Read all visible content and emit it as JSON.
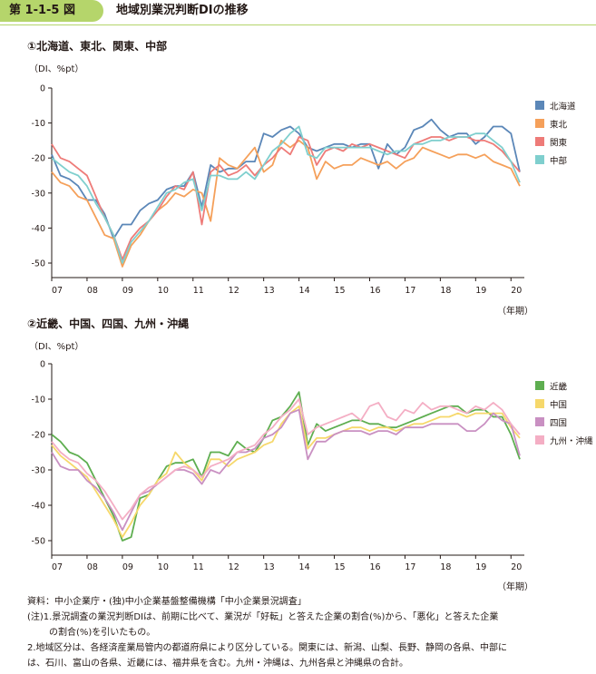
{
  "figure": {
    "label": "第 1-1-5 図",
    "title": "地域別業況判断DIの推移"
  },
  "colors": {
    "北海道": "#5b87b8",
    "東北": "#f5a05a",
    "関東": "#ee7b78",
    "中部": "#7fcfce",
    "近畿": "#5eae50",
    "中国": "#f6d86b",
    "四国": "#c990c2",
    "九州・沖縄": "#f4aec4"
  },
  "panels": [
    {
      "title": "①北海道、東北、関東、中部",
      "units": "（DI、%pt）",
      "year_unit": "（年期）"
    },
    {
      "title": "②近畿、中国、四国、九州・沖縄",
      "units": "（DI、%pt）",
      "year_unit": "（年期）"
    }
  ],
  "chart_data": [
    {
      "type": "line",
      "title": "①北海道、東北、関東、中部",
      "ylabel": "（DI、%pt）",
      "xlabel": "（年期）",
      "ylim": [
        -50,
        0
      ],
      "yticks": [
        0,
        -10,
        -20,
        -30,
        -40,
        -50
      ],
      "xlim": [
        2007.0,
        2020.25
      ],
      "xtick_labels": [
        "07",
        "08",
        "09",
        "10",
        "11",
        "12",
        "13",
        "14",
        "15",
        "16",
        "17",
        "18",
        "19",
        "20"
      ],
      "legend": "right",
      "grid": false,
      "series": [
        {
          "name": "北海道",
          "x": [
            2007.0,
            2007.25,
            2007.5,
            2007.75,
            2008.0,
            2008.25,
            2008.5,
            2008.75,
            2009.0,
            2009.25,
            2009.5,
            2009.75,
            2010.0,
            2010.25,
            2010.5,
            2010.75,
            2011.0,
            2011.25,
            2011.5,
            2011.75,
            2012.0,
            2012.25,
            2012.5,
            2012.75,
            2013.0,
            2013.25,
            2013.5,
            2013.75,
            2014.0,
            2014.25,
            2014.5,
            2014.75,
            2015.0,
            2015.25,
            2015.5,
            2015.75,
            2016.0,
            2016.25,
            2016.5,
            2016.75,
            2017.0,
            2017.25,
            2017.5,
            2017.75,
            2018.0,
            2018.25,
            2018.5,
            2018.75,
            2019.0,
            2019.25,
            2019.5,
            2019.75,
            2020.0,
            2020.25
          ],
          "y": [
            -19,
            -25,
            -26,
            -28,
            -32,
            -32,
            -36,
            -43,
            -39,
            -39,
            -35,
            -33,
            -32,
            -29,
            -28,
            -28,
            -24,
            -34,
            -22,
            -24,
            -23,
            -23,
            -21,
            -21,
            -13,
            -14,
            -12,
            -11,
            -13,
            -17,
            -18,
            -17,
            -16,
            -16,
            -17,
            -16,
            -16,
            -23,
            -16,
            -19,
            -17,
            -12,
            -11,
            -9,
            -12,
            -14,
            -13,
            -13,
            -16,
            -14,
            -11,
            -11,
            -13,
            -24
          ]
        },
        {
          "name": "東北",
          "x": [
            2007.0,
            2007.25,
            2007.5,
            2007.75,
            2008.0,
            2008.25,
            2008.5,
            2008.75,
            2009.0,
            2009.25,
            2009.5,
            2009.75,
            2010.0,
            2010.25,
            2010.5,
            2010.75,
            2011.0,
            2011.25,
            2011.5,
            2011.75,
            2012.0,
            2012.25,
            2012.5,
            2012.75,
            2013.0,
            2013.25,
            2013.5,
            2013.75,
            2014.0,
            2014.25,
            2014.5,
            2014.75,
            2015.0,
            2015.25,
            2015.5,
            2015.75,
            2016.0,
            2016.25,
            2016.5,
            2016.75,
            2017.0,
            2017.25,
            2017.5,
            2017.75,
            2018.0,
            2018.25,
            2018.5,
            2018.75,
            2019.0,
            2019.25,
            2019.5,
            2019.75,
            2020.0,
            2020.25
          ],
          "y": [
            -24,
            -27,
            -28,
            -31,
            -32,
            -37,
            -42,
            -43,
            -51,
            -45,
            -42,
            -38,
            -35,
            -33,
            -30,
            -31,
            -29,
            -30,
            -38,
            -20,
            -22,
            -23,
            -20,
            -17,
            -24,
            -22,
            -15,
            -17,
            -15,
            -17,
            -26,
            -21,
            -23,
            -22,
            -22,
            -20,
            -21,
            -22,
            -21,
            -23,
            -21,
            -20,
            -17,
            -18,
            -19,
            -20,
            -19,
            -19,
            -20,
            -19,
            -21,
            -22,
            -23,
            -28
          ]
        },
        {
          "name": "関東",
          "x": [
            2007.0,
            2007.25,
            2007.5,
            2007.75,
            2008.0,
            2008.25,
            2008.5,
            2008.75,
            2009.0,
            2009.25,
            2009.5,
            2009.75,
            2010.0,
            2010.25,
            2010.5,
            2010.75,
            2011.0,
            2011.25,
            2011.5,
            2011.75,
            2012.0,
            2012.25,
            2012.5,
            2012.75,
            2013.0,
            2013.25,
            2013.5,
            2013.75,
            2014.0,
            2014.25,
            2014.5,
            2014.75,
            2015.0,
            2015.25,
            2015.5,
            2015.75,
            2016.0,
            2016.25,
            2016.5,
            2016.75,
            2017.0,
            2017.25,
            2017.5,
            2017.75,
            2018.0,
            2018.25,
            2018.5,
            2018.75,
            2019.0,
            2019.25,
            2019.5,
            2019.75,
            2020.0,
            2020.25
          ],
          "y": [
            -16,
            -20,
            -21,
            -23,
            -25,
            -31,
            -37,
            -42,
            -49,
            -43,
            -40,
            -38,
            -35,
            -31,
            -28,
            -29,
            -24,
            -39,
            -24,
            -22,
            -25,
            -24,
            -22,
            -25,
            -22,
            -20,
            -17,
            -19,
            -14,
            -15,
            -22,
            -18,
            -17,
            -18,
            -16,
            -17,
            -16,
            -17,
            -18,
            -19,
            -20,
            -16,
            -15,
            -14,
            -14,
            -15,
            -14,
            -14,
            -15,
            -15,
            -16,
            -18,
            -21,
            -24
          ]
        },
        {
          "name": "中部",
          "x": [
            2007.0,
            2007.25,
            2007.5,
            2007.75,
            2008.0,
            2008.25,
            2008.5,
            2008.75,
            2009.0,
            2009.25,
            2009.5,
            2009.75,
            2010.0,
            2010.25,
            2010.5,
            2010.75,
            2011.0,
            2011.25,
            2011.5,
            2011.75,
            2012.0,
            2012.25,
            2012.5,
            2012.75,
            2013.0,
            2013.25,
            2013.5,
            2013.75,
            2014.0,
            2014.25,
            2014.5,
            2014.75,
            2015.0,
            2015.25,
            2015.5,
            2015.75,
            2016.0,
            2016.25,
            2016.5,
            2016.75,
            2017.0,
            2017.25,
            2017.5,
            2017.75,
            2018.0,
            2018.25,
            2018.5,
            2018.75,
            2019.0,
            2019.25,
            2019.5,
            2019.75,
            2020.0,
            2020.25
          ],
          "y": [
            -20,
            -22,
            -24,
            -25,
            -28,
            -33,
            -37,
            -42,
            -50,
            -44,
            -41,
            -38,
            -34,
            -30,
            -29,
            -27,
            -26,
            -35,
            -25,
            -25,
            -26,
            -26,
            -24,
            -26,
            -22,
            -18,
            -16,
            -13,
            -11,
            -19,
            -20,
            -17,
            -17,
            -17,
            -17,
            -17,
            -17,
            -18,
            -19,
            -18,
            -18,
            -16,
            -16,
            -15,
            -15,
            -14,
            -14,
            -14,
            -13,
            -13,
            -15,
            -17,
            -21,
            -27
          ]
        }
      ]
    },
    {
      "type": "line",
      "title": "②近畿、中国、四国、九州・沖縄",
      "ylabel": "（DI、%pt）",
      "xlabel": "（年期）",
      "ylim": [
        -50,
        0
      ],
      "yticks": [
        0,
        -10,
        -20,
        -30,
        -40,
        -50
      ],
      "xlim": [
        2007.0,
        2020.25
      ],
      "xtick_labels": [
        "07",
        "08",
        "09",
        "10",
        "11",
        "12",
        "13",
        "14",
        "15",
        "16",
        "17",
        "18",
        "19",
        "20"
      ],
      "legend": "right",
      "grid": false,
      "series": [
        {
          "name": "近畿",
          "x": [
            2007.0,
            2007.25,
            2007.5,
            2007.75,
            2008.0,
            2008.25,
            2008.5,
            2008.75,
            2009.0,
            2009.25,
            2009.5,
            2009.75,
            2010.0,
            2010.25,
            2010.5,
            2010.75,
            2011.0,
            2011.25,
            2011.5,
            2011.75,
            2012.0,
            2012.25,
            2012.5,
            2012.75,
            2013.0,
            2013.25,
            2013.5,
            2013.75,
            2014.0,
            2014.25,
            2014.5,
            2014.75,
            2015.0,
            2015.25,
            2015.5,
            2015.75,
            2016.0,
            2016.25,
            2016.5,
            2016.75,
            2017.0,
            2017.25,
            2017.5,
            2017.75,
            2018.0,
            2018.25,
            2018.5,
            2018.75,
            2019.0,
            2019.25,
            2019.5,
            2019.75,
            2020.0,
            2020.25
          ],
          "y": [
            -20,
            -22,
            -25,
            -26,
            -28,
            -33,
            -38,
            -43,
            -50,
            -49,
            -38,
            -37,
            -33,
            -29,
            -28,
            -28,
            -27,
            -32,
            -25,
            -25,
            -26,
            -22,
            -24,
            -25,
            -21,
            -16,
            -15,
            -12,
            -8,
            -23,
            -17,
            -19,
            -18,
            -17,
            -16,
            -16,
            -17,
            -17,
            -18,
            -18,
            -17,
            -16,
            -15,
            -14,
            -13,
            -12,
            -12,
            -14,
            -13,
            -13,
            -15,
            -15,
            -20,
            -27
          ]
        },
        {
          "name": "中国",
          "x": [
            2007.0,
            2007.25,
            2007.5,
            2007.75,
            2008.0,
            2008.25,
            2008.5,
            2008.75,
            2009.0,
            2009.25,
            2009.5,
            2009.75,
            2010.0,
            2010.25,
            2010.5,
            2010.75,
            2011.0,
            2011.25,
            2011.5,
            2011.75,
            2012.0,
            2012.25,
            2012.5,
            2012.75,
            2013.0,
            2013.25,
            2013.5,
            2013.75,
            2014.0,
            2014.25,
            2014.5,
            2014.75,
            2015.0,
            2015.25,
            2015.5,
            2015.75,
            2016.0,
            2016.25,
            2016.5,
            2016.75,
            2017.0,
            2017.25,
            2017.5,
            2017.75,
            2018.0,
            2018.25,
            2018.5,
            2018.75,
            2019.0,
            2019.25,
            2019.5,
            2019.75,
            2020.0,
            2020.25
          ],
          "y": [
            -23,
            -26,
            -28,
            -30,
            -32,
            -36,
            -40,
            -44,
            -49,
            -45,
            -40,
            -37,
            -33,
            -31,
            -25,
            -28,
            -30,
            -33,
            -27,
            -27,
            -29,
            -27,
            -26,
            -25,
            -23,
            -22,
            -17,
            -14,
            -12,
            -24,
            -21,
            -21,
            -20,
            -19,
            -18,
            -18,
            -19,
            -18,
            -18,
            -19,
            -18,
            -17,
            -17,
            -16,
            -15,
            -15,
            -14,
            -15,
            -14,
            -14,
            -14,
            -14,
            -18,
            -21
          ]
        },
        {
          "name": "四国",
          "x": [
            2007.0,
            2007.25,
            2007.5,
            2007.75,
            2008.0,
            2008.25,
            2008.5,
            2008.75,
            2009.0,
            2009.25,
            2009.5,
            2009.75,
            2010.0,
            2010.25,
            2010.5,
            2010.75,
            2011.0,
            2011.25,
            2011.5,
            2011.75,
            2012.0,
            2012.25,
            2012.5,
            2012.75,
            2013.0,
            2013.25,
            2013.5,
            2013.75,
            2014.0,
            2014.25,
            2014.5,
            2014.75,
            2015.0,
            2015.25,
            2015.5,
            2015.75,
            2016.0,
            2016.25,
            2016.5,
            2016.75,
            2017.0,
            2017.25,
            2017.5,
            2017.75,
            2018.0,
            2018.25,
            2018.5,
            2018.75,
            2019.0,
            2019.25,
            2019.5,
            2019.75,
            2020.0,
            2020.25
          ],
          "y": [
            -25,
            -29,
            -30,
            -30,
            -33,
            -35,
            -38,
            -42,
            -47,
            -42,
            -37,
            -36,
            -34,
            -32,
            -30,
            -30,
            -31,
            -34,
            -30,
            -31,
            -28,
            -25,
            -25,
            -24,
            -21,
            -20,
            -18,
            -14,
            -13,
            -27,
            -22,
            -22,
            -20,
            -19,
            -19,
            -19,
            -20,
            -19,
            -19,
            -20,
            -18,
            -18,
            -18,
            -17,
            -17,
            -17,
            -17,
            -19,
            -19,
            -17,
            -14,
            -16,
            -17,
            -26
          ]
        },
        {
          "name": "九州・沖縄",
          "x": [
            2007.0,
            2007.25,
            2007.5,
            2007.75,
            2008.0,
            2008.25,
            2008.5,
            2008.75,
            2009.0,
            2009.25,
            2009.5,
            2009.75,
            2010.0,
            2010.25,
            2010.5,
            2010.75,
            2011.0,
            2011.25,
            2011.5,
            2011.75,
            2012.0,
            2012.25,
            2012.5,
            2012.75,
            2013.0,
            2013.25,
            2013.5,
            2013.75,
            2014.0,
            2014.25,
            2014.5,
            2014.75,
            2015.0,
            2015.25,
            2015.5,
            2015.75,
            2016.0,
            2016.25,
            2016.5,
            2016.75,
            2017.0,
            2017.25,
            2017.5,
            2017.75,
            2018.0,
            2018.25,
            2018.5,
            2018.75,
            2019.0,
            2019.25,
            2019.5,
            2019.75,
            2020.0,
            2020.25
          ],
          "y": [
            -22,
            -25,
            -27,
            -28,
            -31,
            -33,
            -36,
            -40,
            -44,
            -41,
            -37,
            -35,
            -34,
            -32,
            -30,
            -29,
            -30,
            -32,
            -29,
            -28,
            -27,
            -25,
            -24,
            -23,
            -20,
            -18,
            -15,
            -13,
            -10,
            -20,
            -18,
            -17,
            -16,
            -15,
            -14,
            -16,
            -12,
            -11,
            -15,
            -16,
            -13,
            -14,
            -11,
            -13,
            -12,
            -12,
            -13,
            -14,
            -12,
            -13,
            -11,
            -13,
            -17,
            -20
          ]
        }
      ]
    }
  ],
  "notes": {
    "source": "資料：中小企業庁・(独)中小企業基盤整備機構「中小企業景況調査」",
    "note1a": "(注)1.景況調査の業況判断DIは、前期に比べて、業況が「好転」と答えた企業の割合(%)から、「悪化」と答えた企業",
    "note1b": "の割合(%)を引いたもの。",
    "note2a": "2.地域区分は、各経済産業局管内の都道府県により区分している。関東には、新潟、山梨、長野、静岡の各県、中部に",
    "note2b": "は、石川、富山の各県、近畿には、福井県を含む。九州・沖縄は、九州各県と沖縄県の合計。"
  }
}
